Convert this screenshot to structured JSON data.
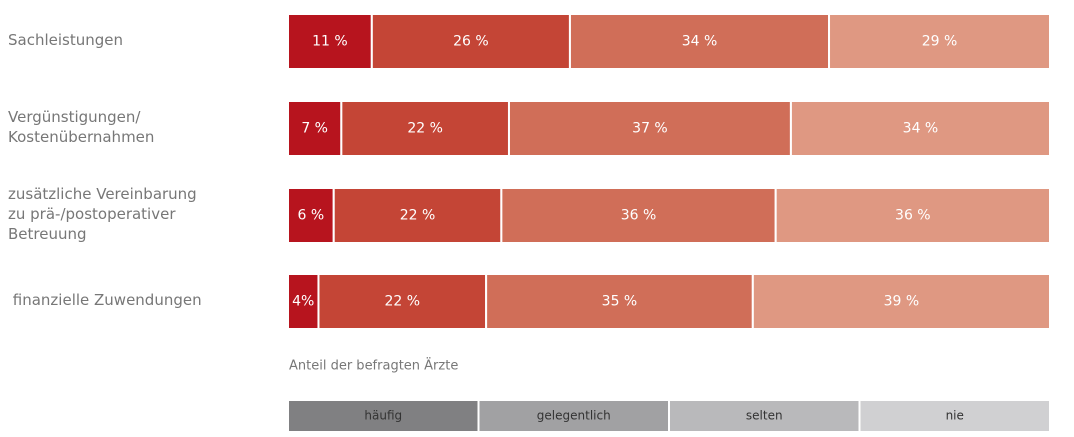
{
  "chart_data": {
    "type": "stacked_barh",
    "categories": [
      "Sachleistungen",
      "Vergünstigungen/\nKostenübernahmen",
      "zusätzliche Vereinbarung\nzu prä-/postoperativer\nBetreuung",
      " finanzielle Zuwendungen"
    ],
    "series": [
      {
        "name": "häufig",
        "color": "#b7141e",
        "legend_color": "#808082",
        "values": [
          11,
          7,
          6,
          4
        ],
        "value_labels": [
          "11 %",
          "7 %",
          "6 %",
          "4%"
        ]
      },
      {
        "name": "gelegentlich",
        "color": "#c44536",
        "legend_color": "#a1a1a3",
        "values": [
          26,
          22,
          22,
          22
        ],
        "value_labels": [
          "26 %",
          "22 %",
          "22 %",
          "22 %"
        ]
      },
      {
        "name": "selten",
        "color": "#d06e58",
        "legend_color": "#b9b9bb",
        "values": [
          34,
          37,
          36,
          35
        ],
        "value_labels": [
          "34 %",
          "37 %",
          "36 %",
          "35 %"
        ]
      },
      {
        "name": "nie",
        "color": "#df9882",
        "legend_color": "#d0d0d2",
        "values": [
          29,
          34,
          36,
          39
        ],
        "value_labels": [
          "29 %",
          "34 %",
          "36 %",
          "39 %"
        ]
      }
    ],
    "xlabel": "Anteil der befragten Ärzte",
    "xlim": [
      0,
      100
    ],
    "legend": "bottom"
  }
}
